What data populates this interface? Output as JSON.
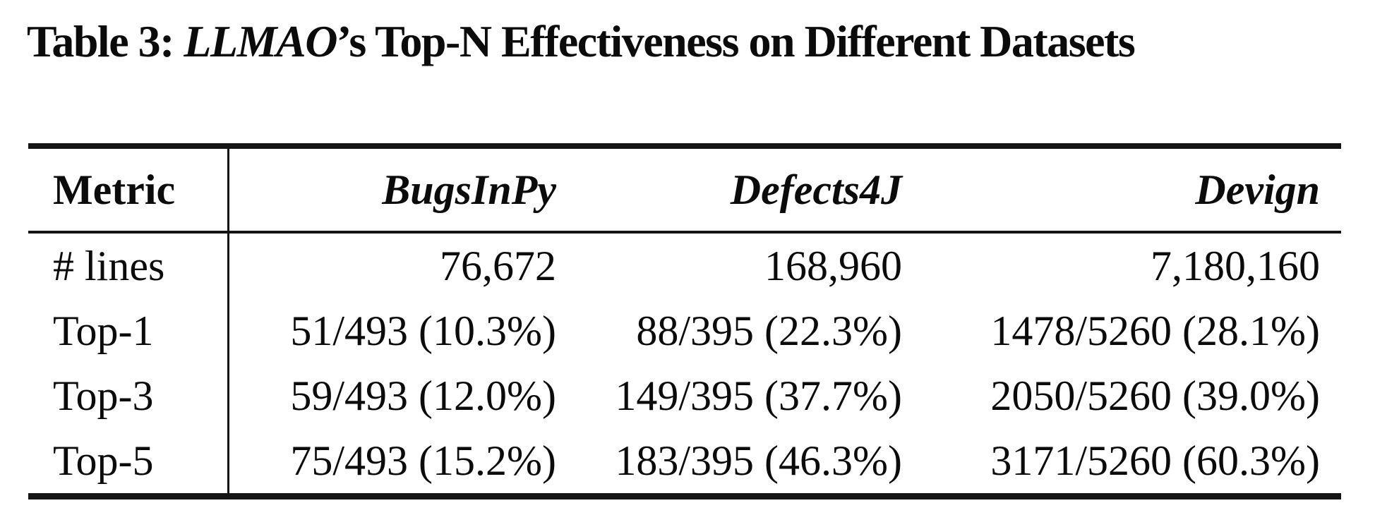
{
  "caption": {
    "prefix": "Table 3: ",
    "emphasis": "LLMAO",
    "suffix": "’s Top-N Effectiveness on Different Datasets"
  },
  "chart_data": {
    "type": "table",
    "title": "Table 3: LLMAO’s Top-N Effectiveness on Different Datasets",
    "columns": [
      "Metric",
      "BugsInPy",
      "Defects4J",
      "Devign"
    ],
    "rows": [
      [
        "# lines",
        "76,672",
        "168,960",
        "7,180,160"
      ],
      [
        "Top-1",
        "51/493 (10.3%)",
        "88/395 (22.3%)",
        "1478/5260 (28.1%)"
      ],
      [
        "Top-3",
        "59/493 (12.0%)",
        "149/395 (37.7%)",
        "2050/5260 (39.0%)"
      ],
      [
        "Top-5",
        "75/493 (15.2%)",
        "183/395 (46.3%)",
        "3171/5260 (60.3%)"
      ]
    ]
  },
  "colors": {
    "background": "#ffffff",
    "text": "#0b0b0b",
    "rule": "#141414"
  }
}
